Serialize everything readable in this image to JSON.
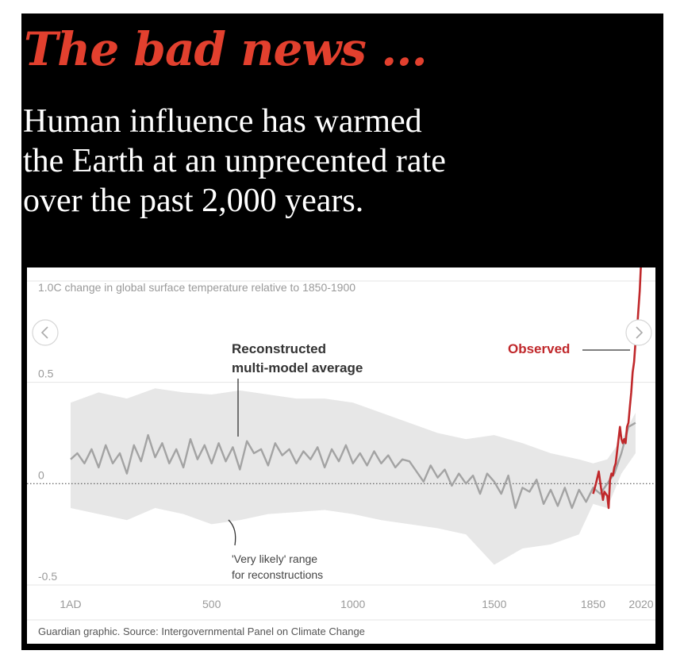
{
  "header": {
    "title": "The bad news ...",
    "subtitle_lines": [
      "Human influence has warmed",
      "the Earth at an unprecented rate",
      "over the past 2,000 years."
    ]
  },
  "colors": {
    "accent": "#e2402e",
    "observed": "#c0282b",
    "reconstruction": "#a3a3a3",
    "range": "#e7e7e7",
    "background": "#000000"
  },
  "nav": {
    "prev_icon": "chevron-left-icon",
    "next_icon": "chevron-right-icon"
  },
  "chart_data": {
    "type": "line",
    "title": "1.0C change in global surface temperature relative to 1850-1900",
    "xlabel": "",
    "ylabel": "",
    "xlim": [
      1,
      2020
    ],
    "ylim": [
      -0.5,
      1.0
    ],
    "x_ticks": [
      1,
      500,
      1000,
      1500,
      1850,
      2020
    ],
    "x_tick_labels": [
      "1AD",
      "500",
      "1000",
      "1500",
      "1850",
      "2020"
    ],
    "y_ticks": [
      1.0,
      0.5,
      0,
      -0.5
    ],
    "y_tick_labels": [
      "1.0C",
      "0.5",
      "0",
      "-0.5"
    ],
    "grid": true,
    "baseline_dotted": 0,
    "source": "Guardian graphic. Source: Intergovernmental Panel on Climate Change",
    "annotations": [
      {
        "text_lines": [
          "Reconstructed",
          "multi-model average"
        ],
        "target": "Reconstructed multi-model average"
      },
      {
        "text_lines": [
          "'Very likely' range",
          "for reconstructions"
        ],
        "target": "'Very likely' range"
      },
      {
        "text_lines": [
          "Observed"
        ],
        "target": "Observed"
      }
    ],
    "series": [
      {
        "name": "Reconstructed multi-model average",
        "x": [
          1,
          25,
          50,
          75,
          100,
          125,
          150,
          175,
          200,
          225,
          250,
          275,
          300,
          325,
          350,
          375,
          400,
          425,
          450,
          475,
          500,
          525,
          550,
          575,
          600,
          625,
          650,
          675,
          700,
          725,
          750,
          775,
          800,
          825,
          850,
          875,
          900,
          925,
          950,
          975,
          1000,
          1025,
          1050,
          1075,
          1100,
          1125,
          1150,
          1175,
          1200,
          1225,
          1250,
          1275,
          1300,
          1325,
          1350,
          1375,
          1400,
          1425,
          1450,
          1475,
          1500,
          1525,
          1550,
          1575,
          1600,
          1625,
          1650,
          1675,
          1700,
          1725,
          1750,
          1775,
          1800,
          1825,
          1850,
          1875,
          1900,
          1925,
          1950,
          1975,
          2000
        ],
        "y": [
          0.12,
          0.15,
          0.1,
          0.17,
          0.08,
          0.19,
          0.1,
          0.15,
          0.05,
          0.19,
          0.11,
          0.24,
          0.13,
          0.2,
          0.1,
          0.17,
          0.08,
          0.22,
          0.12,
          0.19,
          0.1,
          0.2,
          0.11,
          0.18,
          0.07,
          0.21,
          0.15,
          0.17,
          0.09,
          0.2,
          0.14,
          0.17,
          0.1,
          0.16,
          0.12,
          0.18,
          0.08,
          0.17,
          0.11,
          0.19,
          0.1,
          0.15,
          0.09,
          0.16,
          0.1,
          0.14,
          0.08,
          0.12,
          0.11,
          0.06,
          0.01,
          0.09,
          0.03,
          0.07,
          -0.01,
          0.05,
          0.0,
          0.04,
          -0.05,
          0.05,
          0.01,
          -0.05,
          0.04,
          -0.12,
          -0.02,
          -0.04,
          0.02,
          -0.1,
          -0.03,
          -0.11,
          -0.02,
          -0.12,
          -0.03,
          -0.09,
          -0.02,
          -0.05,
          0.0,
          0.05,
          0.15,
          0.28,
          0.3
        ]
      },
      {
        "name": "'Very likely' range",
        "x": [
          1,
          100,
          200,
          300,
          400,
          500,
          600,
          700,
          800,
          900,
          1000,
          1100,
          1200,
          1300,
          1400,
          1500,
          1600,
          1700,
          1800,
          1850,
          1900,
          1950,
          2000
        ],
        "upper": [
          0.4,
          0.45,
          0.42,
          0.47,
          0.45,
          0.44,
          0.46,
          0.44,
          0.42,
          0.42,
          0.4,
          0.35,
          0.3,
          0.25,
          0.22,
          0.24,
          0.2,
          0.15,
          0.12,
          0.1,
          0.12,
          0.22,
          0.35
        ],
        "lower": [
          -0.12,
          -0.15,
          -0.18,
          -0.12,
          -0.15,
          -0.2,
          -0.18,
          -0.15,
          -0.14,
          -0.13,
          -0.15,
          -0.18,
          -0.2,
          -0.22,
          -0.25,
          -0.4,
          -0.32,
          -0.3,
          -0.25,
          -0.1,
          -0.12,
          0.05,
          0.15
        ]
      },
      {
        "name": "Observed",
        "x": [
          1850,
          1860,
          1870,
          1878,
          1885,
          1890,
          1900,
          1905,
          1910,
          1915,
          1920,
          1925,
          1930,
          1940,
          1945,
          1950,
          1955,
          1960,
          1965,
          1970,
          1975,
          1980,
          1985,
          1990,
          1995,
          2000,
          2005,
          2010,
          2015,
          2020
        ],
        "y": [
          -0.05,
          0.0,
          0.06,
          -0.02,
          -0.08,
          -0.04,
          -0.06,
          -0.12,
          0.02,
          0.05,
          0.04,
          0.08,
          0.1,
          0.22,
          0.28,
          0.22,
          0.2,
          0.22,
          0.2,
          0.28,
          0.3,
          0.38,
          0.45,
          0.55,
          0.6,
          0.7,
          0.75,
          0.85,
          0.95,
          1.1
        ]
      }
    ]
  }
}
